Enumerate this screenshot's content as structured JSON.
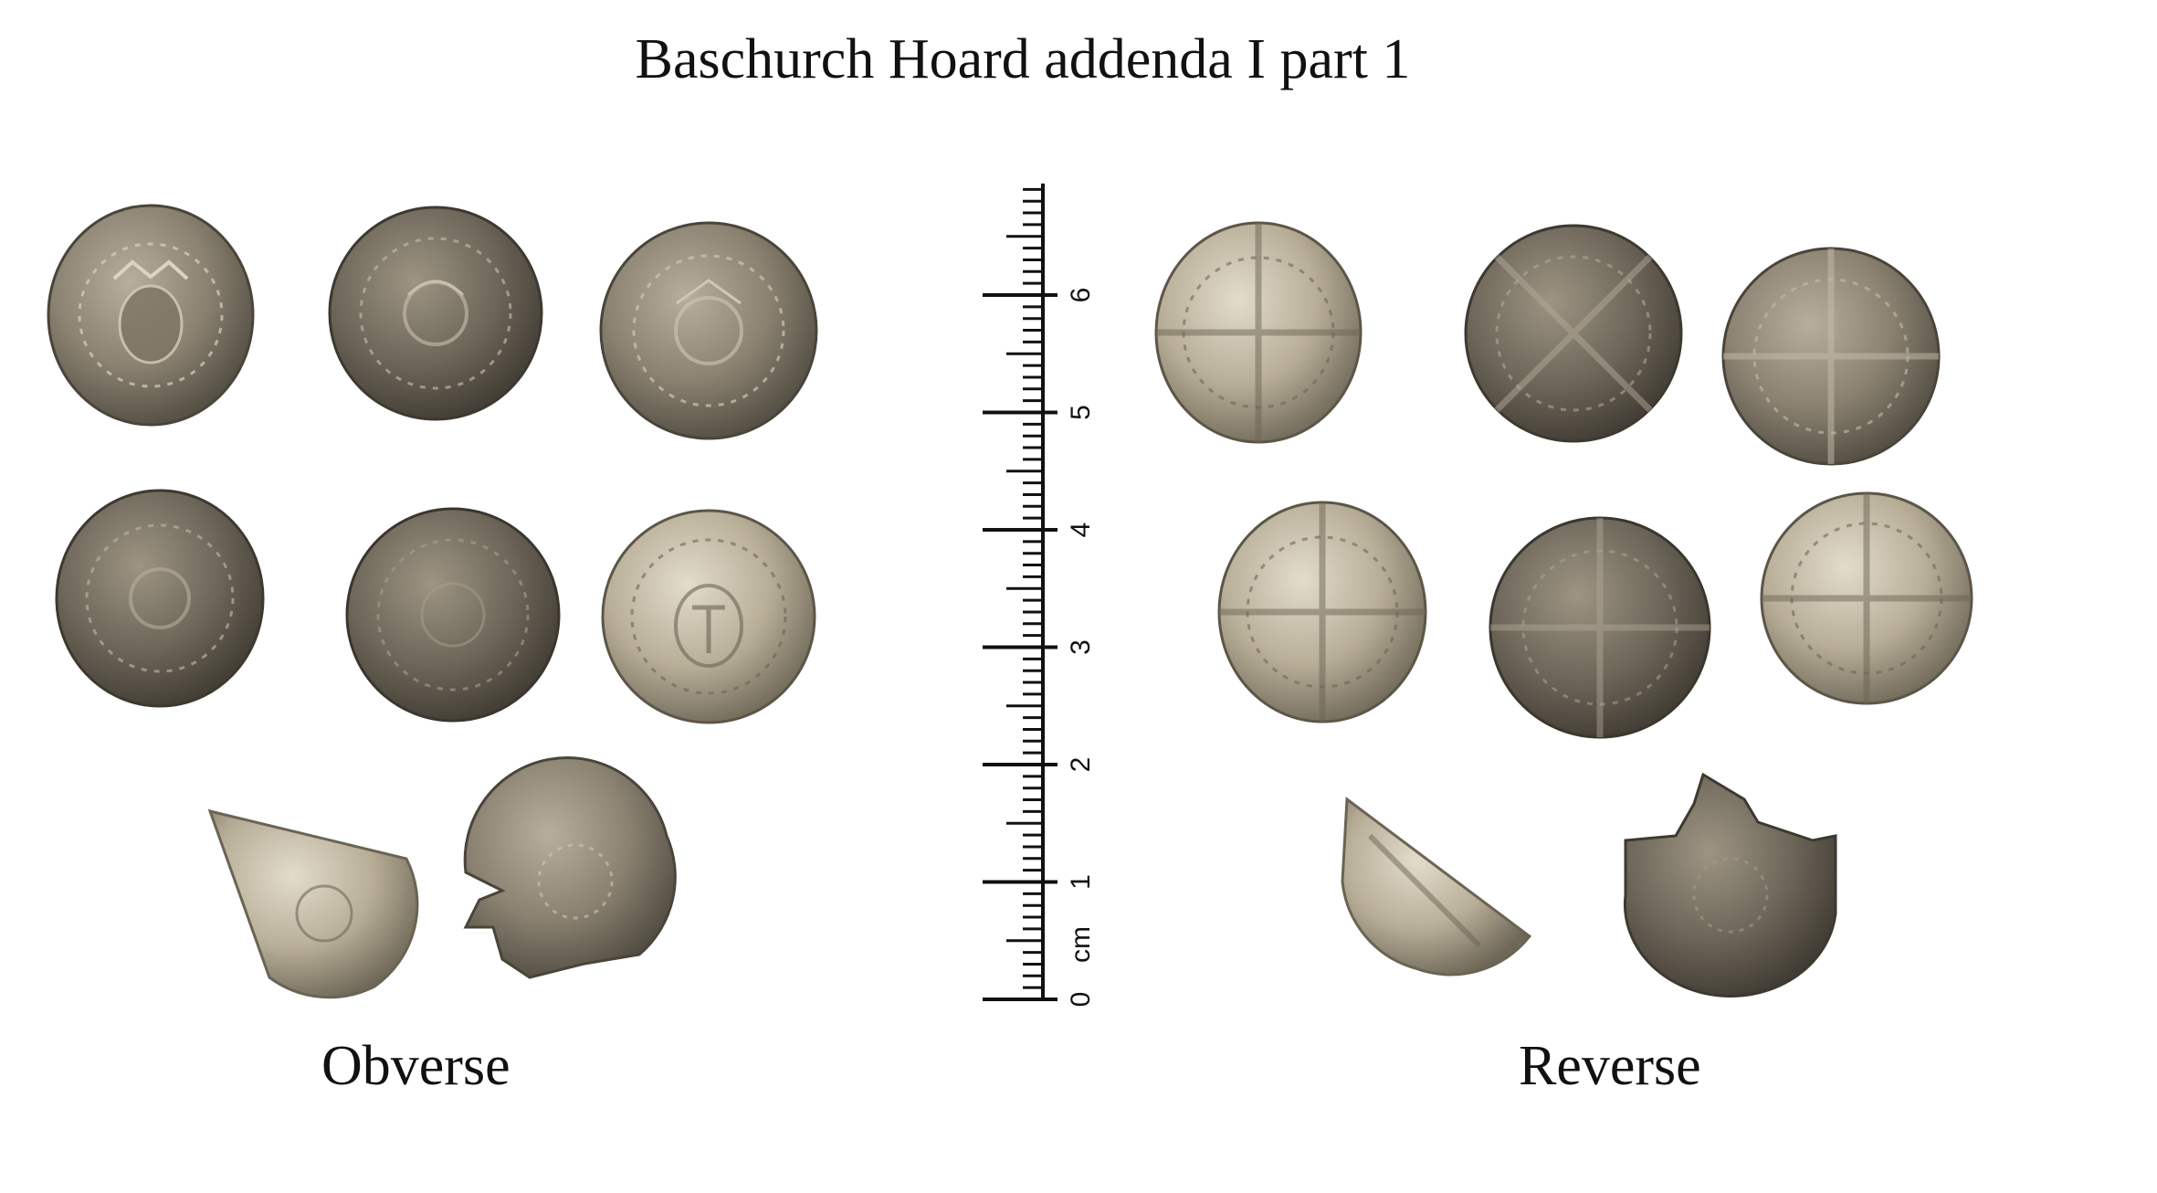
{
  "title": "Baschurch Hoard addenda I part 1",
  "captions": {
    "obverse": "Obverse",
    "reverse": "Reverse"
  },
  "ruler": {
    "unit_label": "cm",
    "range_cm": [
      0,
      7
    ],
    "labels": [
      "0",
      "1",
      "2",
      "3",
      "4",
      "5",
      "6"
    ]
  },
  "colors": {
    "background": "#ffffff",
    "coin_light": "#cfc6b2",
    "coin_mid": "#8f8675",
    "coin_dark": "#5b5447",
    "ruler": "#111111"
  },
  "coins": {
    "obverse_count": 8,
    "reverse_count": 8
  }
}
